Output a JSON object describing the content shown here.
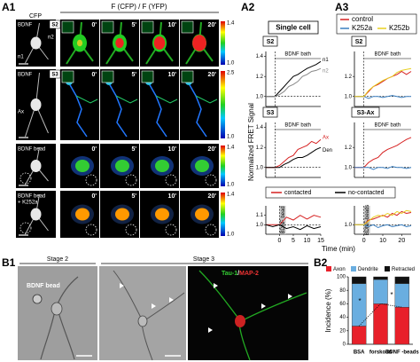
{
  "a1": {
    "label": "A1",
    "cfp": "CFP",
    "ratio": "F (CFP) / F (YFP)",
    "times": [
      "0'",
      "5'",
      "10'",
      "20'"
    ],
    "rows": [
      {
        "label": "BDNF",
        "stage": "S2",
        "marks": [
          "n1",
          "n2"
        ],
        "colorbar": [
          1.4,
          {
            "value": 1,
            "label": "1.0"
          }
        ]
      },
      {
        "label": "BDNF",
        "stage": "S3",
        "marks": [
          "Ax"
        ],
        "colorbar": [
          2.5,
          {
            "value": 1,
            "label": "1.0"
          }
        ]
      },
      {
        "label": "BDNF bead",
        "colorbar": [
          1.4,
          {
            "value": 1,
            "label": "1.0"
          }
        ]
      },
      {
        "label": [
          "BDNF bead",
          "+ K252a"
        ],
        "colorbar": [
          1.4,
          {
            "value": 1,
            "label": "1.0"
          }
        ]
      }
    ]
  },
  "a2": {
    "label": "A2",
    "header": "Single cell",
    "y_label": "Normalized FRET Signal",
    "x_label": "Time (min)",
    "panels": [
      {
        "type": "line",
        "name": "S2",
        "stimulus": "BDNF bath",
        "stimulus_mark": "bracket",
        "end_labels": true,
        "onset": 0,
        "baseline": 1,
        "xlim": [
          -5,
          25
        ],
        "ylim": [
          0.9,
          1.45
        ],
        "yticks": [
          {
            "value": 1,
            "label": "1.0"
          },
          1.2,
          1.4
        ],
        "x": [
          -5,
          -2.5,
          0,
          2.5,
          5,
          7.5,
          10,
          12.5,
          15,
          17.5,
          20,
          22.5,
          25
        ],
        "series": [
          {
            "name": "n1",
            "color": "#000000",
            "values": [
              1.0,
              1.0,
              1.0,
              1.05,
              1.1,
              1.15,
              1.2,
              1.22,
              1.25,
              1.28,
              1.3,
              1.32,
              1.35
            ]
          },
          {
            "name": "n2",
            "color": "#888888",
            "values": [
              1.0,
              1.0,
              1.0,
              1.02,
              1.05,
              1.1,
              1.12,
              1.15,
              1.2,
              1.22,
              1.25,
              1.26,
              1.28
            ]
          }
        ]
      },
      {
        "type": "line",
        "name": "S3",
        "stimulus": "BDNF bath",
        "stimulus_mark": "bracket",
        "end_labels": true,
        "onset": 0,
        "baseline": 1,
        "xlim": [
          -5,
          25
        ],
        "ylim": [
          0.9,
          1.45
        ],
        "yticks": [
          {
            "value": 1,
            "label": "1.0"
          },
          1.2,
          1.4
        ],
        "x": [
          -5,
          -2.5,
          0,
          2.5,
          5,
          7.5,
          10,
          12.5,
          15,
          17.5,
          20,
          22.5,
          25
        ],
        "series": [
          {
            "name": "Ax",
            "color": "#d62020",
            "values": [
              1.0,
              1.0,
              1.0,
              1.02,
              1.06,
              1.1,
              1.12,
              1.18,
              1.2,
              1.22,
              1.26,
              1.24,
              1.28
            ]
          },
          {
            "name": "Den",
            "color": "#000000",
            "values": [
              1.0,
              1.0,
              1.0,
              1.0,
              1.03,
              1.05,
              1.08,
              1.1,
              1.1,
              1.12,
              1.15,
              1.18,
              1.2
            ]
          }
        ]
      },
      {
        "type": "line",
        "stimulus": "BDNF bead",
        "stimulus_mark": "box",
        "legend": true,
        "onset": 0,
        "baseline": 1,
        "xlim": [
          -5,
          15
        ],
        "ylim": [
          0.9,
          1.2
        ],
        "yticks": [
          {
            "value": 1,
            "label": "1.0"
          },
          1.1
        ],
        "xticks": [
          0,
          5,
          10,
          15
        ],
        "x": [
          -5,
          -2.5,
          0,
          2.5,
          5,
          7.5,
          10,
          12.5,
          15
        ],
        "series": [
          {
            "name": "contacted",
            "color": "#d62020",
            "values": [
              1.0,
              1.0,
              1.0,
              1.08,
              1.05,
              1.1,
              1.06,
              1.1,
              1.08
            ]
          },
          {
            "name": "no-contacted",
            "color": "#000000",
            "values": [
              1.0,
              0.98,
              1.0,
              0.96,
              0.98,
              0.95,
              0.99,
              0.96,
              0.98
            ]
          }
        ]
      }
    ]
  },
  "a3": {
    "label": "A3",
    "panels": [
      {
        "type": "line",
        "name": "S2",
        "stimulus": "BDNF bath",
        "stimulus_mark": "bracket",
        "onset": 0,
        "baseline": 1,
        "xlim": [
          -5,
          25
        ],
        "ylim": [
          0.9,
          1.45
        ],
        "yticks": [
          {
            "value": 1,
            "label": "1.0"
          },
          1.2
        ],
        "x": [
          -5,
          -2.5,
          0,
          2.5,
          5,
          7.5,
          10,
          12.5,
          15,
          17.5,
          20,
          22.5,
          25
        ],
        "series": [
          {
            "name": "control",
            "color": "#d62020",
            "values": [
              1.0,
              1.0,
              1.0,
              1.05,
              1.1,
              1.12,
              1.15,
              1.18,
              1.2,
              1.22,
              1.25,
              1.22,
              1.25
            ]
          },
          {
            "name": "K252a",
            "color": "#3a7fc0",
            "values": [
              1.0,
              1.0,
              1.0,
              0.98,
              1.0,
              1.0,
              0.99,
              1.0,
              1.01,
              1.0,
              0.99,
              1.0,
              1.0
            ]
          },
          {
            "name": "K252b",
            "color": "#e8d020",
            "values": [
              1.0,
              1.0,
              1.0,
              1.06,
              1.1,
              1.13,
              1.16,
              1.18,
              1.2,
              1.24,
              1.26,
              1.27,
              1.28
            ]
          }
        ]
      },
      {
        "type": "line",
        "name": "S3-Ax",
        "stimulus": "BDNF bath",
        "stimulus_mark": "bracket",
        "onset": 0,
        "baseline": 1,
        "xlim": [
          -5,
          25
        ],
        "ylim": [
          0.9,
          1.45
        ],
        "yticks": [
          {
            "value": 1,
            "label": "1.0"
          },
          1.2
        ],
        "x": [
          -5,
          -2.5,
          0,
          2.5,
          5,
          7.5,
          10,
          12.5,
          15,
          17.5,
          20,
          22.5,
          25
        ],
        "series": [
          {
            "name": "control",
            "color": "#d62020",
            "values": [
              1.0,
              1.0,
              1.0,
              1.05,
              1.08,
              1.1,
              1.15,
              1.18,
              1.2,
              1.22,
              1.25,
              1.28,
              1.3
            ]
          },
          {
            "name": "K252a",
            "color": "#3a7fc0",
            "values": [
              1.0,
              1.0,
              1.0,
              1.0,
              0.98,
              1.0,
              1.0,
              0.99,
              1.01,
              1.0,
              1.0,
              0.99,
              1.0
            ]
          }
        ]
      },
      {
        "type": "line",
        "stimulus": "BDNF-beads",
        "stimulus_mark": "box",
        "onset": 0,
        "baseline": 1,
        "xlim": [
          -5,
          25
        ],
        "ylim": [
          0.9,
          1.2
        ],
        "yticks": [
          {
            "value": 1,
            "label": "1.0"
          }
        ],
        "xticks": [
          0,
          10,
          20
        ],
        "x": [
          -5,
          -2.5,
          0,
          2.5,
          5,
          7.5,
          10,
          12.5,
          15,
          17.5,
          20,
          22.5,
          25
        ],
        "series": [
          {
            "name": "control",
            "color": "#d62020",
            "values": [
              1.0,
              1.0,
              1.0,
              1.05,
              1.06,
              1.08,
              1.1,
              1.08,
              1.12,
              1.1,
              1.14,
              1.12,
              1.13
            ]
          },
          {
            "name": "K252a",
            "color": "#3a7fc0",
            "values": [
              1.0,
              1.0,
              1.0,
              0.98,
              1.0,
              0.97,
              0.99,
              1.0,
              0.98,
              0.99,
              1.0,
              0.98,
              0.99
            ]
          },
          {
            "name": "K252b",
            "color": "#e8d020",
            "values": [
              1.0,
              1.0,
              1.0,
              1.04,
              1.08,
              1.1,
              1.09,
              1.12,
              1.1,
              1.14,
              1.12,
              1.15,
              1.14
            ]
          }
        ]
      }
    ]
  },
  "b1": {
    "label": "B1",
    "stage_2": "Stage 2",
    "stage_3": "Stage 3",
    "bead": "BDNF bead",
    "stain_1": "Tau-1",
    "stain_sep": "/",
    "stain_2": "MAP-2"
  },
  "b2": {
    "label": "B2",
    "type": "bar",
    "stacked": true,
    "y_label": "Incidence (%)",
    "categories": [
      "BSA",
      "forskolin",
      "BDNF -beads"
    ],
    "ylim": [
      0,
      100
    ],
    "yticks": [
      0,
      20,
      40,
      60,
      80,
      100
    ],
    "significance": [
      "*",
      "*"
    ],
    "series": [
      {
        "name": "Axon",
        "color": "#e8202a",
        "values": [
          27,
          60,
          55
        ]
      },
      {
        "name": "Dendrite",
        "color": "#6aaee0",
        "values": [
          63,
          36,
          35
        ]
      },
      {
        "name": "Retracted",
        "color": "#111111",
        "values": [
          10,
          4,
          10
        ]
      }
    ]
  }
}
